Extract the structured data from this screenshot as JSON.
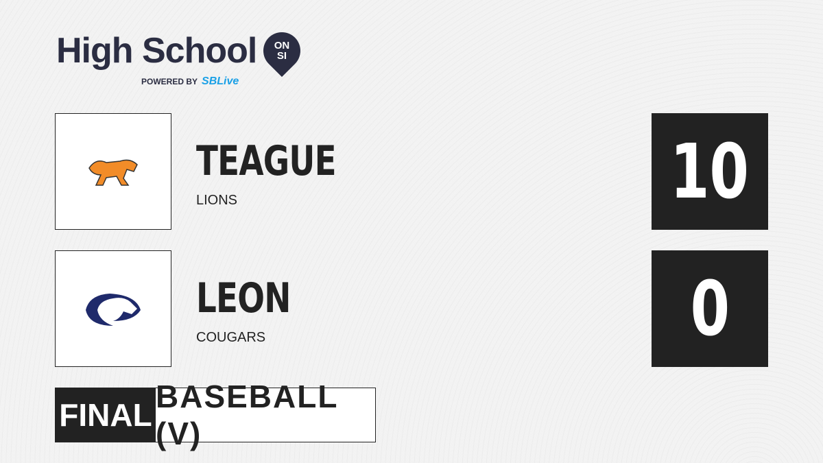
{
  "brand": {
    "title": "High School",
    "pin": "ON SI",
    "powered_by": "POWERED BY",
    "partner": "SBLive"
  },
  "teams": [
    {
      "name": "TEAGUE",
      "mascot": "LIONS",
      "score": "10",
      "logo_color": "#f28c28"
    },
    {
      "name": "LEON",
      "mascot": "COUGARS",
      "score": "0",
      "logo_color": "#1f2a6b"
    }
  ],
  "game": {
    "status": "FINAL",
    "sport": "BASEBALL (V)"
  }
}
